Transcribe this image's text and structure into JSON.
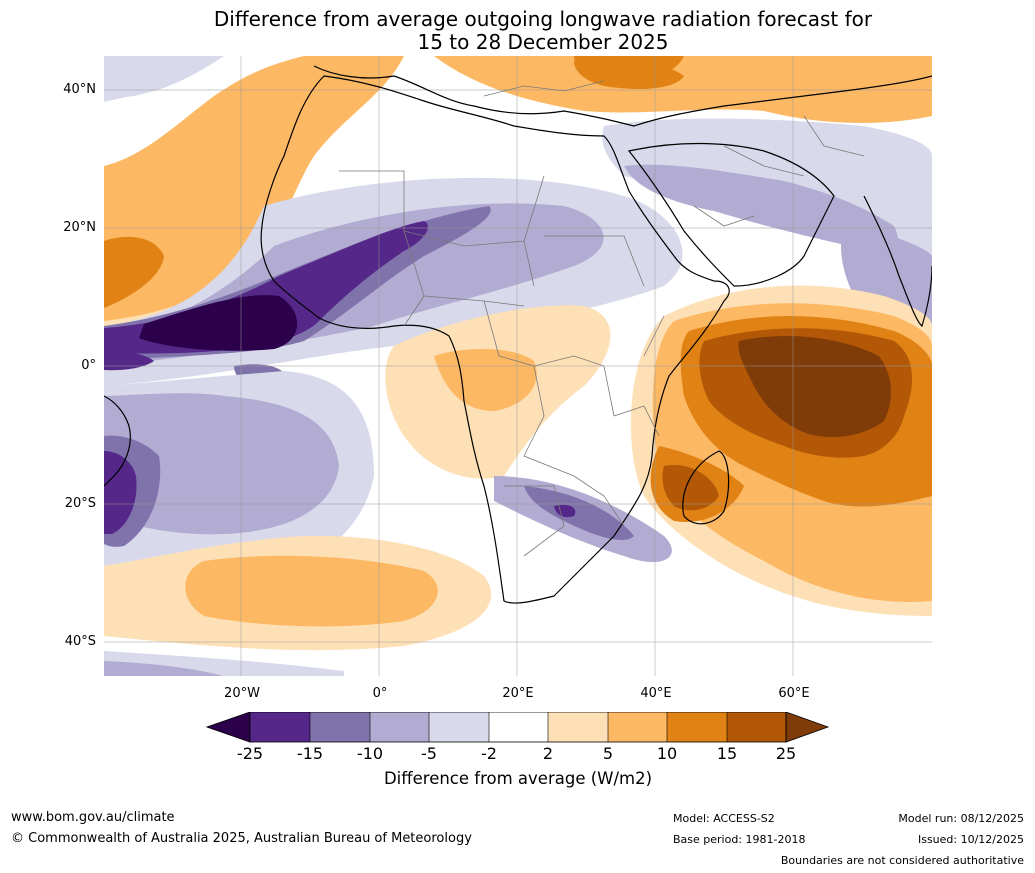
{
  "title": {
    "line1": "Difference from average outgoing longwave radiation forecast for",
    "line2": "15 to 28 December 2025"
  },
  "map": {
    "lat_labels": [
      "40°N",
      "20°N",
      "0°",
      "20°S",
      "40°S"
    ],
    "lon_labels": [
      "20°W",
      "0°",
      "20°E",
      "40°E",
      "60°E"
    ],
    "palette": {
      "lt_neg25": "#2d004b",
      "neg25_neg15": "#542788",
      "neg15_neg10": "#8073ac",
      "neg10_neg5": "#b2abd2",
      "neg5_neg2": "#d8daeb",
      "neg2_2": "#ffffff",
      "pos2_5": "#fee0b6",
      "pos5_10": "#fdb863",
      "pos10_15": "#e08214",
      "pos15_25": "#b35806",
      "gt25": "#7f3b08"
    }
  },
  "colorbar": {
    "ticks": [
      "-25",
      "-15",
      "-10",
      "-5",
      "-2",
      "2",
      "5",
      "10",
      "15",
      "25"
    ],
    "title": "Difference from average (W/m2)"
  },
  "footer": {
    "website": "www.bom.gov.au/climate",
    "copyright": "© Commonwealth of Australia 2025, Australian Bureau of Meteorology",
    "model": "Model: ACCESS-S2",
    "base_period": "Base period: 1981-2018",
    "model_run": "Model run: 08/12/2025",
    "issued": "Issued: 10/12/2025",
    "boundaries_note": "Boundaries are not considered authoritative"
  }
}
